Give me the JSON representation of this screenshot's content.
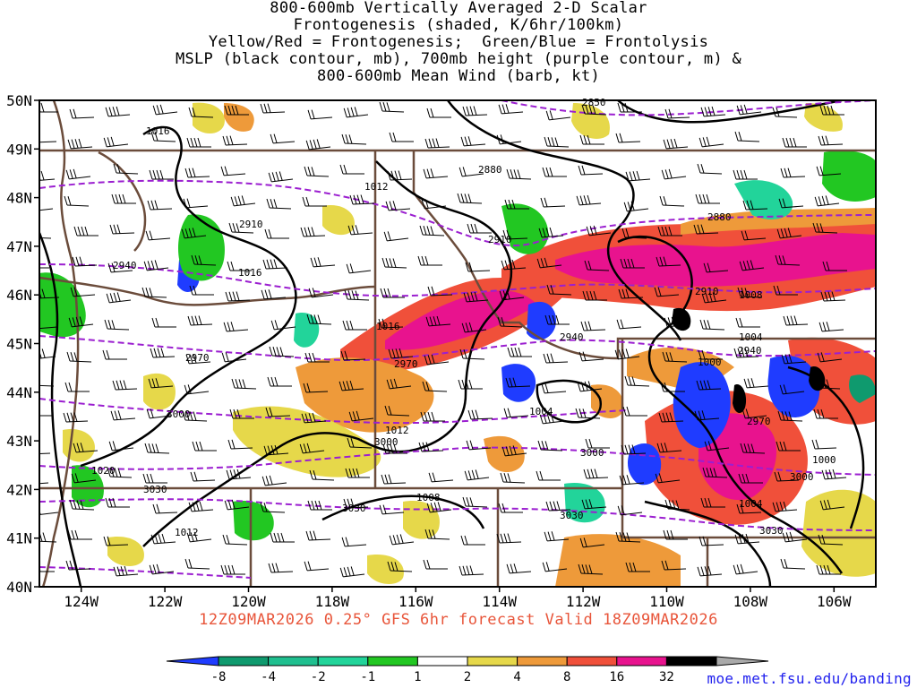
{
  "title_lines": [
    "800-600mb Vertically Averaged 2-D Scalar",
    "Frontogenesis (shaded, K/6hr/100km)",
    "Yellow/Red = Frontogenesis;  Green/Blue = Frontolysis",
    "MSLP (black contour, mb), 700mb height (purple contour, m) &",
    "800-600mb Mean Wind (barb, kt)"
  ],
  "subtitle": "12Z09MAR2026 0.25° GFS 6hr forecast Valid 18Z09MAR2026",
  "credit": "moe.met.fsu.edu/banding",
  "axes": {
    "lat_labels": [
      "50N",
      "49N",
      "48N",
      "47N",
      "46N",
      "45N",
      "44N",
      "43N",
      "42N",
      "41N",
      "40N"
    ],
    "lon_labels": [
      "124W",
      "122W",
      "120W",
      "118W",
      "116W",
      "114W",
      "112W",
      "110W",
      "108W",
      "106W"
    ],
    "lat_range": [
      40,
      50
    ],
    "lon_range": [
      -125,
      -105
    ]
  },
  "colorbar": {
    "labels": [
      "-8",
      "-4",
      "-2",
      "-1",
      "1",
      "2",
      "4",
      "8",
      "16",
      "32"
    ],
    "colors": [
      "#1f3cff",
      "#0f9a6e",
      "#1fbf8f",
      "#22d49a",
      "#22c722",
      "#ffffff",
      "#e6d84a",
      "#ee9a3a",
      "#f0503a",
      "#e8138e",
      "#000000",
      "#aaaaaa"
    ]
  },
  "mslp_labels": [
    "1016",
    "1012",
    "1016",
    "1016",
    "1012",
    "1020",
    "1012",
    "1008",
    "1008",
    "1004",
    "1004",
    "1000",
    "1000",
    "1004"
  ],
  "height_labels": [
    "2850",
    "2880",
    "2880",
    "2910",
    "2910",
    "2910",
    "2940",
    "2940",
    "2940",
    "2970",
    "2970",
    "2970",
    "3000",
    "3000",
    "3000",
    "3000",
    "3030",
    "3030",
    "3030",
    "3030"
  ],
  "map": {
    "field": "800-600mb frontogenesis",
    "regions": [
      "Washington",
      "Oregon",
      "Idaho",
      "Montana",
      "Wyoming",
      "Nevada",
      "Utah",
      "Colorado",
      "California"
    ]
  }
}
